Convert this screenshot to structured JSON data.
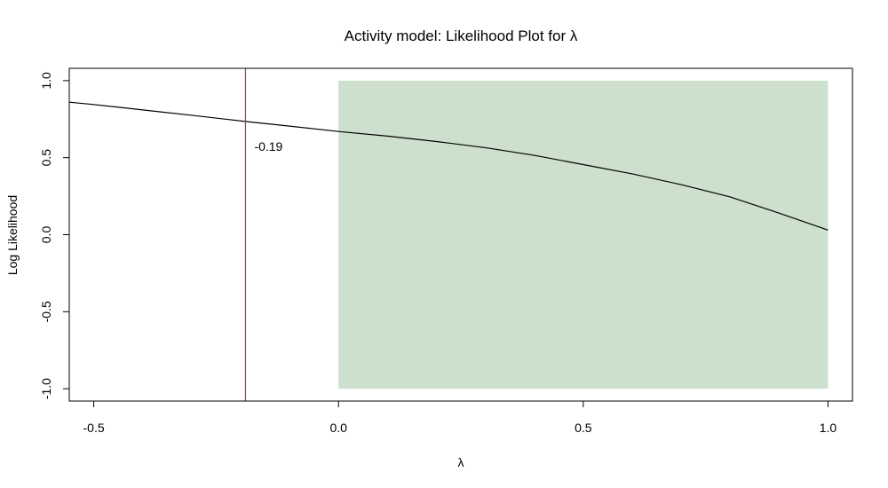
{
  "chart_data": {
    "type": "line",
    "title": "Activity model: Likelihood Plot for λ",
    "xlabel": "λ",
    "ylabel": "Log Likelihood",
    "xlim": [
      -0.55,
      1.05
    ],
    "ylim": [
      -1.08,
      1.08
    ],
    "xticks": [
      -0.5,
      0.0,
      0.5,
      1.0
    ],
    "xtick_labels": [
      "-0.5",
      "0.0",
      "0.5",
      "1.0"
    ],
    "yticks": [
      -1.0,
      -0.5,
      0.0,
      0.5,
      1.0
    ],
    "ytick_labels": [
      "-1.0",
      "-0.5",
      "0.0",
      "0.5",
      "1.0"
    ],
    "grid": false,
    "series": [
      {
        "color": "#000000",
        "x": [
          -0.55,
          -0.5,
          -0.4,
          -0.3,
          -0.19,
          -0.1,
          0.0,
          0.1,
          0.2,
          0.3,
          0.4,
          0.5,
          0.6,
          0.7,
          0.8,
          0.9,
          1.0
        ],
        "y": [
          0.86,
          0.845,
          0.81,
          0.775,
          0.735,
          0.705,
          0.67,
          0.64,
          0.605,
          0.565,
          0.515,
          0.455,
          0.395,
          0.325,
          0.245,
          0.14,
          0.03
        ]
      }
    ],
    "shaded_region": {
      "x": [
        0.0,
        1.0
      ],
      "y": [
        -1.0,
        1.0
      ],
      "color": "#cde0cd"
    },
    "vline": {
      "x": -0.19,
      "color": "#d62728",
      "label": "-0.19"
    }
  }
}
